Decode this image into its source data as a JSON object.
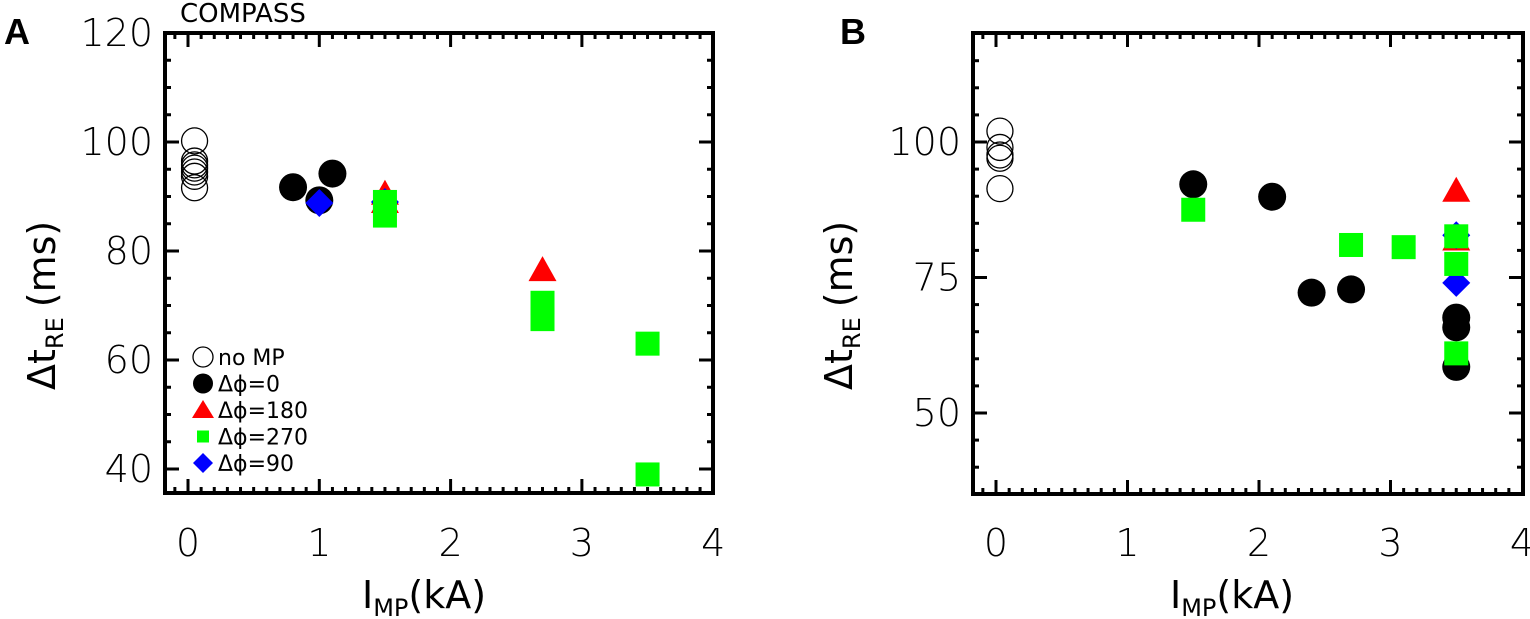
{
  "figure": {
    "panel_a": {
      "letter": "A",
      "title": "COMPASS",
      "xlabel_main": "I",
      "xlabel_sub": "MP",
      "xlabel_unit": "(kA)",
      "ylabel_main": "Δt",
      "ylabel_sub": "RE",
      "ylabel_unit": "(ms)",
      "xticks": [
        "0",
        "1",
        "2",
        "3",
        "4"
      ],
      "yticks": [
        "40",
        "60",
        "80",
        "100",
        "120"
      ]
    },
    "panel_b": {
      "letter": "B",
      "xlabel_main": "I",
      "xlabel_sub": "MP",
      "xlabel_unit": "(kA)",
      "ylabel_main": "Δt",
      "ylabel_sub": "RE",
      "ylabel_unit": "(ms)",
      "xticks": [
        "0",
        "1",
        "2",
        "3",
        "4"
      ],
      "yticks": [
        "50",
        "75",
        "100"
      ]
    },
    "legend": [
      {
        "label": "no MP",
        "marker": "open-circle",
        "color": "#000000"
      },
      {
        "label": "Δϕ=0",
        "marker": "filled-circle",
        "color": "#000000"
      },
      {
        "label": "Δϕ=180",
        "marker": "triangle",
        "color": "#ff0000"
      },
      {
        "label": "Δϕ=270",
        "marker": "square",
        "color": "#00ff00"
      },
      {
        "label": "Δϕ=90",
        "marker": "diamond",
        "color": "#0000ff"
      }
    ]
  },
  "chart_data": [
    {
      "type": "scatter",
      "panel": "A",
      "title": "COMPASS",
      "xlabel": "I_MP (kA)",
      "ylabel": "Δt_RE (ms)",
      "xlim": [
        -0.17,
        4
      ],
      "ylim": [
        36,
        121
      ],
      "grid": false,
      "legend_position": "lower left",
      "series": [
        {
          "name": "no MP",
          "marker": "open-circle",
          "color": "#000000",
          "x": [
            0.05,
            0.05,
            0.05,
            0.05,
            0.05,
            0.05,
            0.05
          ],
          "y": [
            100.2,
            96.5,
            95.8,
            95.2,
            94.5,
            93.7,
            91.6
          ]
        },
        {
          "name": "Δϕ=0",
          "marker": "filled-circle",
          "color": "#000000",
          "x": [
            0.8,
            1.0,
            1.1
          ],
          "y": [
            91.7,
            89.3,
            94.2
          ]
        },
        {
          "name": "Δϕ=180",
          "marker": "triangle",
          "color": "#ff0000",
          "x": [
            1.5,
            1.5,
            2.7
          ],
          "y": [
            90.5,
            89.0,
            76.5
          ]
        },
        {
          "name": "Δϕ=270",
          "marker": "square",
          "color": "#00ff00",
          "x": [
            1.5,
            1.5,
            2.7,
            2.7,
            3.5,
            3.5
          ],
          "y": [
            89.0,
            86.5,
            70.5,
            67.5,
            63.0,
            39.0
          ]
        },
        {
          "name": "Δϕ=90",
          "marker": "diamond",
          "color": "#0000ff",
          "x": [
            1.0,
            1.5
          ],
          "y": [
            88.8,
            89.0
          ]
        }
      ]
    },
    {
      "type": "scatter",
      "panel": "B",
      "xlabel": "I_MP (kA)",
      "ylabel": "Δt_RE (ms)",
      "xlim": [
        -0.17,
        4
      ],
      "ylim": [
        35,
        120
      ],
      "grid": false,
      "series": [
        {
          "name": "no MP",
          "marker": "open-circle",
          "color": "#000000",
          "x": [
            0.03,
            0.03,
            0.03,
            0.03,
            0.03
          ],
          "y": [
            102.0,
            99.0,
            97.6,
            97.0,
            91.4
          ]
        },
        {
          "name": "Δϕ=0",
          "marker": "filled-circle",
          "color": "#000000",
          "x": [
            1.5,
            2.1,
            2.4,
            2.7,
            3.5,
            3.5,
            3.5
          ],
          "y": [
            92.2,
            89.9,
            72.2,
            72.8,
            67.6,
            65.8,
            58.5
          ]
        },
        {
          "name": "Δϕ=180",
          "marker": "triangle",
          "color": "#ff0000",
          "x": [
            3.5,
            3.5
          ],
          "y": [
            91.0,
            82.0
          ]
        },
        {
          "name": "Δϕ=270",
          "marker": "square",
          "color": "#00ff00",
          "x": [
            1.5,
            2.7,
            3.1,
            3.5,
            3.5,
            3.5
          ],
          "y": [
            87.5,
            81.0,
            80.6,
            82.6,
            77.5,
            61.0
          ]
        },
        {
          "name": "Δϕ=90",
          "marker": "diamond",
          "color": "#0000ff",
          "x": [
            3.5,
            3.5
          ],
          "y": [
            82.8,
            74.0
          ]
        }
      ]
    }
  ]
}
